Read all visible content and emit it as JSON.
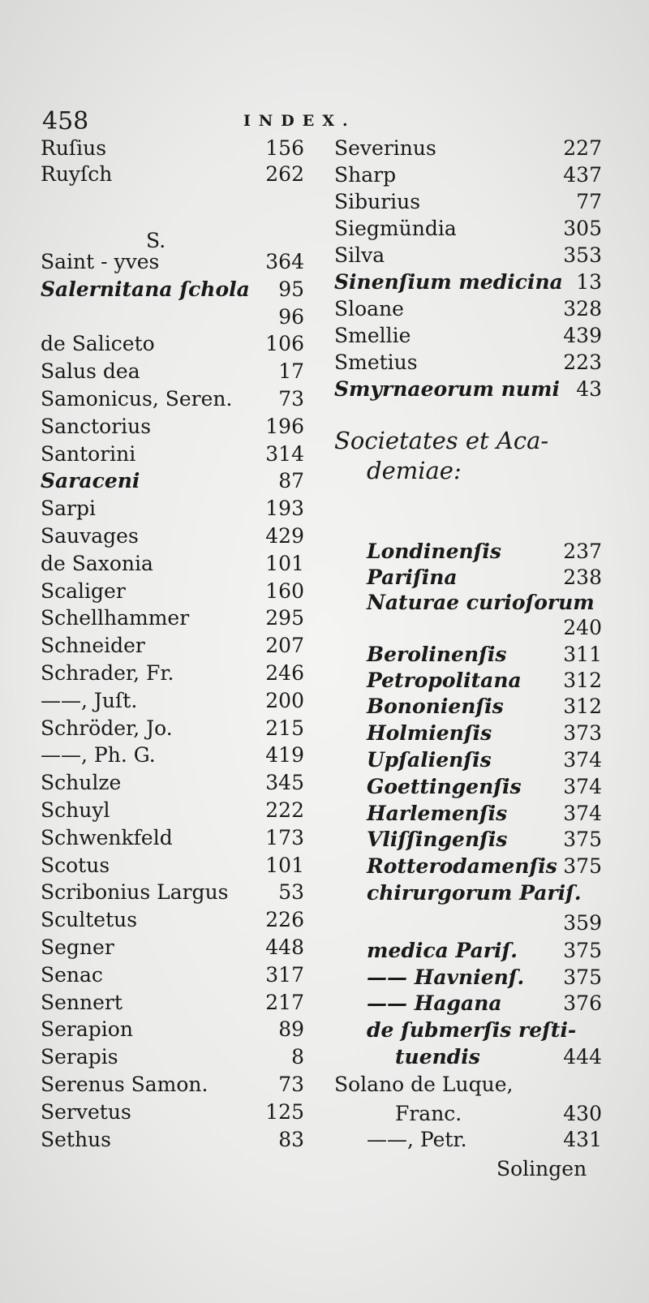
{
  "header": {
    "page_number": "458",
    "running_head": "INDEX."
  },
  "left_column": [
    {
      "term": "Ruſius",
      "page": "156"
    },
    {
      "term": "Ruyſch",
      "page": "262"
    },
    {
      "term": "S.",
      "page": "",
      "heading": true
    },
    {
      "term": "Saint - yves",
      "page": "364"
    },
    {
      "term": "Salernitana ſchola",
      "page": "95",
      "italic": true
    },
    {
      "term": "",
      "page": "96"
    },
    {
      "term": "de Saliceto",
      "page": "106"
    },
    {
      "term": "Salus dea",
      "page": "17"
    },
    {
      "term": "Samonicus, Seren.",
      "page": "73"
    },
    {
      "term": "Sanctorius",
      "page": "196"
    },
    {
      "term": "Santorini",
      "page": "314"
    },
    {
      "term": "Saraceni",
      "page": "87",
      "italic": true
    },
    {
      "term": "Sarpi",
      "page": "193"
    },
    {
      "term": "Sauvages",
      "page": "429"
    },
    {
      "term": "de Saxonia",
      "page": "101"
    },
    {
      "term": "Scaliger",
      "page": "160"
    },
    {
      "term": "Schellhammer",
      "page": "295"
    },
    {
      "term": "Schneider",
      "page": "207"
    },
    {
      "term": "Schrader, Fr.",
      "page": "246"
    },
    {
      "term": "——, Juſt.",
      "page": "200"
    },
    {
      "term": "Schröder, Jo.",
      "page": "215"
    },
    {
      "term": "——, Ph. G.",
      "page": "419"
    },
    {
      "term": "Schulze",
      "page": "345"
    },
    {
      "term": "Schuyl",
      "page": "222"
    },
    {
      "term": "Schwenkfeld",
      "page": "173"
    },
    {
      "term": "Scotus",
      "page": "101"
    },
    {
      "term": "Scribonius Largus",
      "page": "53"
    },
    {
      "term": "Scultetus",
      "page": "226"
    },
    {
      "term": "Segner",
      "page": "448"
    },
    {
      "term": "Senac",
      "page": "317"
    },
    {
      "term": "Sennert",
      "page": "217"
    },
    {
      "term": "Serapion",
      "page": "89"
    },
    {
      "term": "Serapis",
      "page": "8"
    },
    {
      "term": "Serenus Samon.",
      "page": "73"
    },
    {
      "term": "Servetus",
      "page": "125"
    },
    {
      "term": "Sethus",
      "page": "83"
    }
  ],
  "right_column": [
    {
      "term": "Severinus",
      "page": "227"
    },
    {
      "term": "Sharp",
      "page": "437"
    },
    {
      "term": "Siburius",
      "page": "77"
    },
    {
      "term": "Siegmündia",
      "page": "305"
    },
    {
      "term": "Silva",
      "page": "353"
    },
    {
      "term": "Sinenſium medicina",
      "page": "13",
      "italic": true
    },
    {
      "term": "Sloane",
      "page": "328"
    },
    {
      "term": "Smellie",
      "page": "439"
    },
    {
      "term": "Smetius",
      "page": "223"
    },
    {
      "term": "Smyrnaeorum numi",
      "page": "43",
      "italic": true
    },
    {
      "term": "Societates et Aca-",
      "page": "",
      "italic": true,
      "big": true
    },
    {
      "term": "demiae:",
      "page": "",
      "italic": true,
      "big": true,
      "indent": true
    },
    {
      "term": "Londinenſis",
      "page": "237",
      "italic": true,
      "indent": true
    },
    {
      "term": "Pariſina",
      "page": "238",
      "italic": true,
      "indent": true
    },
    {
      "term": "Naturae curioſorum",
      "page": "",
      "italic": true,
      "indent": true
    },
    {
      "term": "",
      "page": "240"
    },
    {
      "term": "Berolinenſis",
      "page": "311",
      "italic": true,
      "indent": true
    },
    {
      "term": "Petropolitana",
      "page": "312",
      "italic": true,
      "indent": true
    },
    {
      "term": "Bononienſis",
      "page": "312",
      "italic": true,
      "indent": true
    },
    {
      "term": "Holmienſis",
      "page": "373",
      "italic": true,
      "indent": true
    },
    {
      "term": "Upſalienſis",
      "page": "374",
      "italic": true,
      "indent": true
    },
    {
      "term": "Goettingenſis",
      "page": "374",
      "italic": true,
      "indent": true
    },
    {
      "term": "Harlemenſis",
      "page": "374",
      "italic": true,
      "indent": true
    },
    {
      "term": "Vliſſingenſis",
      "page": "375",
      "italic": true,
      "indent": true
    },
    {
      "term": "Rotterodamenſis",
      "page": "375",
      "italic": true,
      "indent": true
    },
    {
      "term": "chirurgorum Pariſ.",
      "page": "",
      "italic": true,
      "indent": true
    },
    {
      "term": "",
      "page": "359"
    },
    {
      "term": "medica Pariſ.",
      "page": "375",
      "italic": true,
      "indent": true
    },
    {
      "term": "—— Havnienſ.",
      "page": "375",
      "italic": true,
      "indent": true
    },
    {
      "term": "—— Hagana",
      "page": "376",
      "italic": true,
      "indent": true
    },
    {
      "term": "de ſubmerſis reſti-",
      "page": "",
      "italic": true,
      "indent": true
    },
    {
      "term": "tuendis",
      "page": "444",
      "italic": true,
      "indent2": true
    },
    {
      "term": "Solano de Luque,",
      "page": ""
    },
    {
      "term": "Franc.",
      "page": "430",
      "indent2": true
    },
    {
      "term": "——, Petr.",
      "page": "431",
      "indent": true
    }
  ],
  "catchword": "Solingen"
}
